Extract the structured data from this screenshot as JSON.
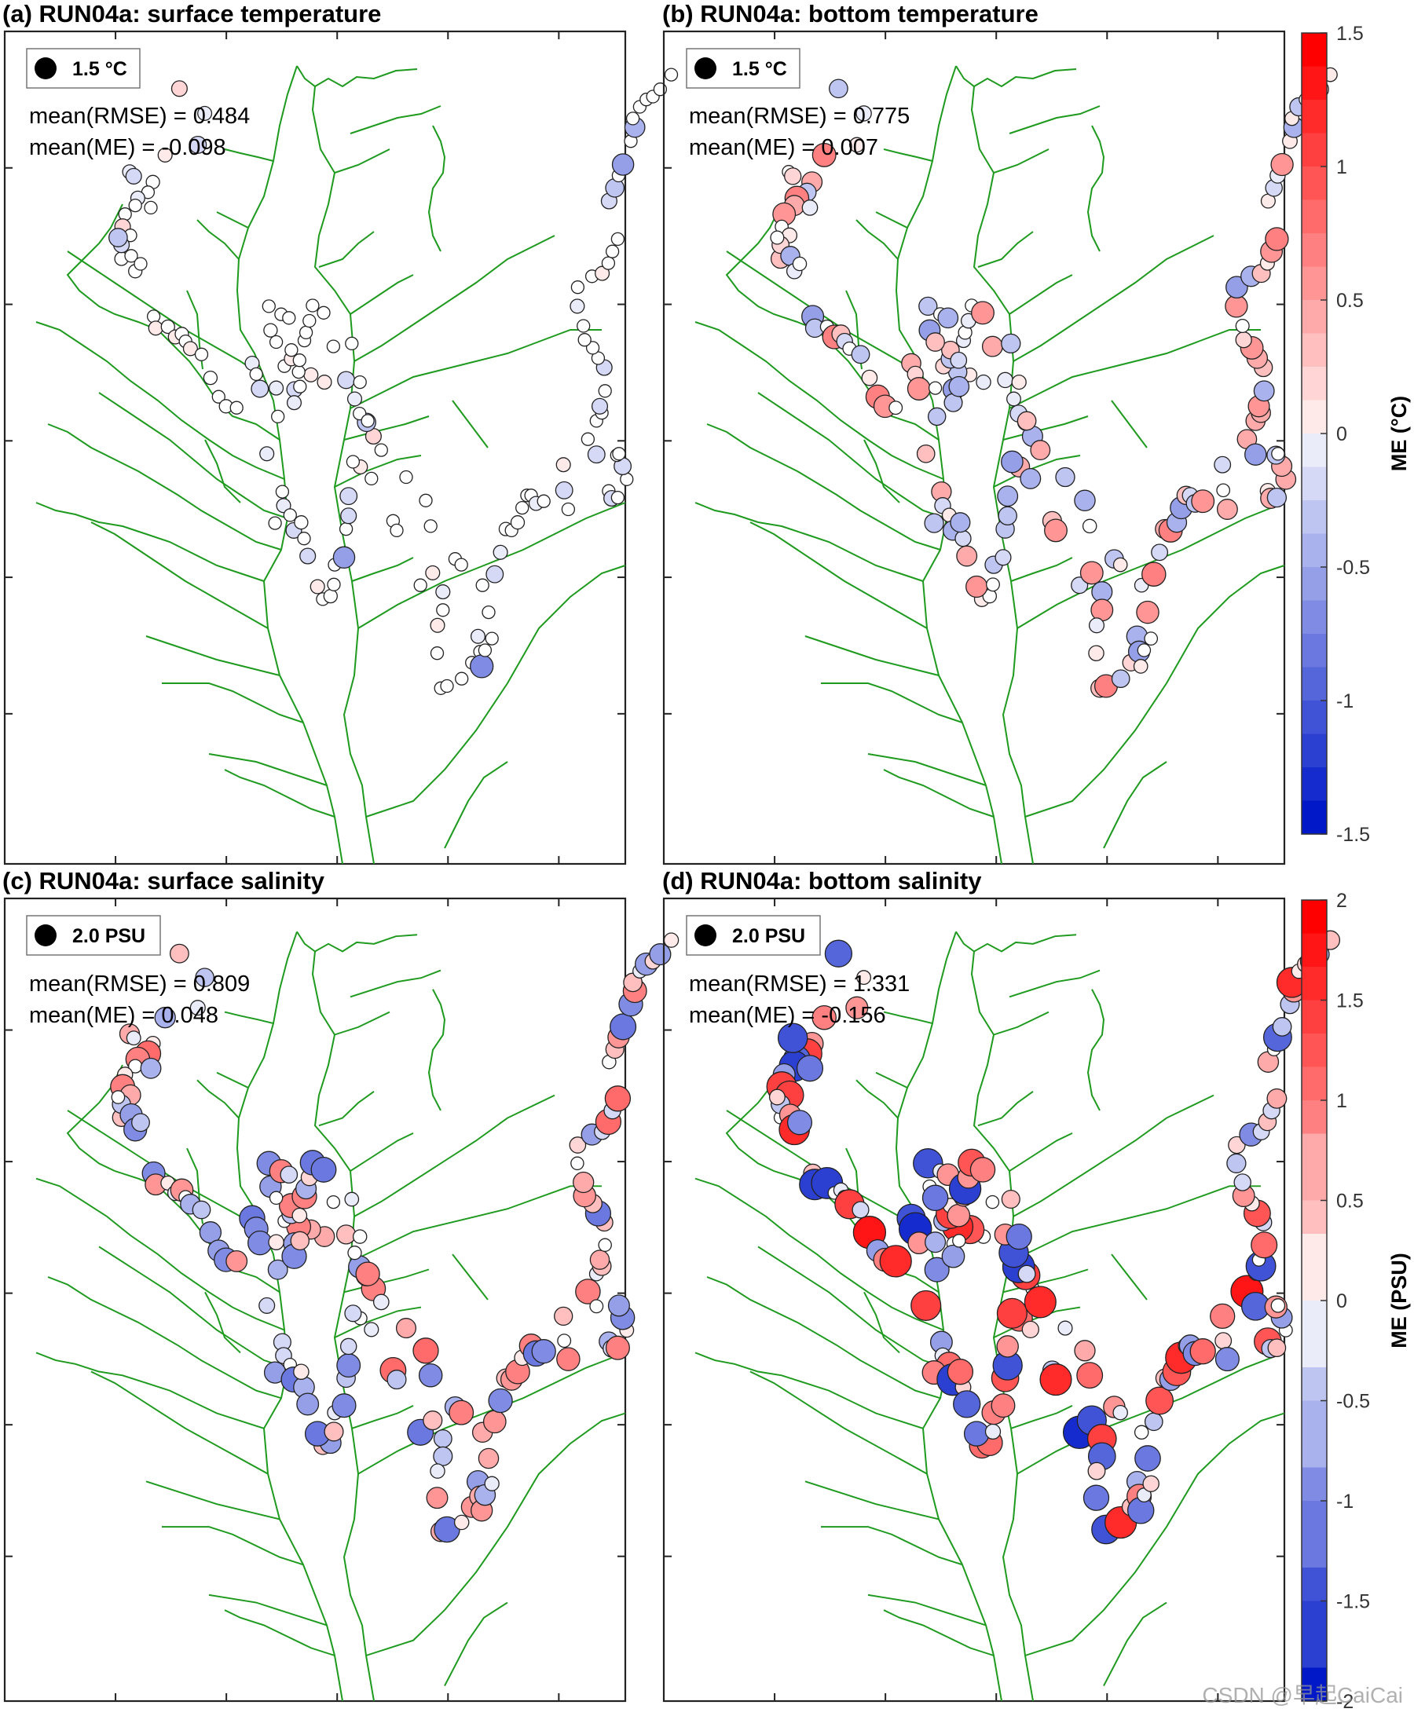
{
  "panels": [
    {
      "id": "a",
      "title": "(a) RUN04a: surface temperature",
      "legend_label": "1.5 °C",
      "rmse_text": "mean(RMSE) = 0.484",
      "me_text": "mean(ME) = -0.098",
      "stations": [
        [
          370,
          46,
          0.2
        ],
        [
          432,
          80,
          -0.1
        ],
        [
          415,
          123,
          -0.3
        ],
        [
          335,
          137,
          0.1
        ],
        [
          305,
          174,
          0.05
        ],
        [
          293,
          188,
          0
        ],
        [
          268,
          196,
          -0.1
        ],
        [
          262,
          206,
          0
        ],
        [
          248,
          160,
          -0.1
        ],
        [
          237,
          218,
          0
        ],
        [
          231,
          235,
          0.2
        ],
        [
          258,
          166,
          -0.2
        ],
        [
          300,
          209,
          0
        ],
        [
          228,
          279,
          -0.05
        ],
        [
          250,
          247,
          0
        ],
        [
          228,
          260,
          -0.2
        ],
        [
          220,
          250,
          -0.4
        ],
        [
          252,
          275,
          0
        ],
        [
          262,
          296,
          0.05
        ],
        [
          275,
          286,
          0
        ],
        [
          307,
          358,
          0
        ],
        [
          312,
          374,
          0.1
        ],
        [
          342,
          372,
          0.05
        ],
        [
          360,
          386,
          0.1
        ],
        [
          376,
          382,
          0.05
        ],
        [
          385,
          392,
          0
        ],
        [
          397,
          402,
          0.1
        ],
        [
          424,
          410,
          0
        ],
        [
          446,
          442,
          0.05
        ],
        [
          466,
          468,
          0
        ],
        [
          484,
          481,
          0.05
        ],
        [
          510,
          483,
          0
        ],
        [
          548,
          422,
          -0.1
        ],
        [
          558,
          437,
          0
        ],
        [
          567,
          457,
          -0.3
        ],
        [
          607,
          456,
          -0.1
        ],
        [
          611,
          495,
          0
        ],
        [
          584,
          546,
          -0.1
        ],
        [
          622,
          598,
          0
        ],
        [
          625,
          617,
          -0.1
        ],
        [
          641,
          630,
          0
        ],
        [
          604,
          641,
          0
        ],
        [
          650,
          651,
          -0.2
        ],
        [
          675,
          662,
          0
        ],
        [
          668,
          640,
          -0.05
        ],
        [
          684,
          686,
          -0.2
        ],
        [
          721,
          745,
          0
        ],
        [
          740,
          741,
          0.05
        ],
        [
          708,
          728,
          0.1
        ],
        [
          748,
          725,
          0
        ],
        [
          750,
          698,
          0
        ],
        [
          773,
          688,
          -0.6
        ],
        [
          778,
          649,
          0
        ],
        [
          784,
          631,
          -0.2
        ],
        [
          784,
          604,
          -0.3
        ],
        [
          813,
          564,
          0.1
        ],
        [
          795,
          557,
          0
        ],
        [
          840,
          580,
          0
        ],
        [
          845,
          522,
          0.2
        ],
        [
          828,
          503,
          -0.4
        ],
        [
          811,
          491,
          0
        ],
        [
          799,
          471,
          -0.1
        ],
        [
          778,
          445,
          -0.3
        ],
        [
          725,
          448,
          0.1
        ],
        [
          692,
          438,
          0.1
        ],
        [
          662,
          434,
          0
        ],
        [
          652,
          458,
          -0.2
        ],
        [
          651,
          476,
          -0.1
        ],
        [
          627,
          426,
          0
        ],
        [
          644,
          416,
          0.1
        ],
        [
          644,
          404,
          0
        ],
        [
          589,
          344,
          0
        ],
        [
          593,
          377,
          -0.05
        ],
        [
          607,
          393,
          0
        ],
        [
          619,
          355,
          0
        ],
        [
          638,
          360,
          0
        ],
        [
          664,
          418,
          0
        ],
        [
          665,
          454,
          0
        ],
        [
          676,
          391,
          0
        ],
        [
          680,
          380,
          0
        ],
        [
          688,
          364,
          0
        ],
        [
          696,
          343,
          0
        ],
        [
          723,
          353,
          0
        ],
        [
          747,
          399,
          0
        ],
        [
          792,
          395,
          0
        ],
        [
          812,
          448,
          0
        ],
        [
          831,
          501,
          0
        ],
        [
          864,
          541,
          0
        ],
        [
          893,
          638,
          0
        ],
        [
          902,
          651,
          0
        ],
        [
          925,
          578,
          0
        ],
        [
          973,
          610,
          0
        ],
        [
          985,
          645,
          0
        ],
        [
          960,
          726,
          0
        ],
        [
          990,
          709,
          0.1
        ],
        [
          1015,
          735,
          -0.1
        ],
        [
          1045,
          690,
          0
        ],
        [
          1060,
          698,
          0
        ],
        [
          1015,
          760,
          0
        ],
        [
          1002,
          781,
          0.1
        ],
        [
          1001,
          819,
          0
        ],
        [
          1010,
          867,
          0
        ],
        [
          1025,
          864,
          0
        ],
        [
          1061,
          854,
          0
        ],
        [
          1086,
          832,
          0
        ],
        [
          1101,
          796,
          -0.1
        ],
        [
          1106,
          817,
          0
        ],
        [
          1110,
          837,
          -0.7
        ],
        [
          1118,
          815,
          0
        ],
        [
          1135,
          799,
          0
        ],
        [
          1127,
          763,
          0
        ],
        [
          1112,
          726,
          0
        ],
        [
          1142,
          711,
          -0.3
        ],
        [
          1156,
          681,
          -0.1
        ],
        [
          1169,
          649,
          -0.05
        ],
        [
          1183,
          651,
          0
        ],
        [
          1198,
          640,
          -0.05
        ],
        [
          1209,
          620,
          0
        ],
        [
          1221,
          603,
          0
        ],
        [
          1231,
          603,
          0
        ],
        [
          1243,
          614,
          -0.1
        ],
        [
          1262,
          611,
          0
        ],
        [
          1310,
          561,
          0.1
        ],
        [
          1312,
          596,
          -0.3
        ],
        [
          1322,
          622,
          0
        ],
        [
          1370,
          526,
          0
        ],
        [
          1391,
          547,
          -0.3
        ],
        [
          1421,
          597,
          0
        ],
        [
          1428,
          607,
          -0.2
        ],
        [
          1443,
          606,
          0
        ],
        [
          1465,
          581,
          0
        ],
        [
          1455,
          563,
          -0.3
        ],
        [
          1441,
          548,
          0
        ],
        [
          1446,
          546,
          0
        ],
        [
          1391,
          501,
          0
        ],
        [
          1404,
          490,
          0
        ],
        [
          1399,
          481,
          -0.2
        ],
        [
          1412,
          460,
          0
        ],
        [
          1410,
          428,
          -0.2
        ],
        [
          1395,
          415,
          0
        ],
        [
          1382,
          401,
          0
        ],
        [
          1362,
          390,
          0
        ],
        [
          1359,
          371,
          0
        ],
        [
          1344,
          344,
          -0.1
        ],
        [
          1345,
          318,
          0
        ],
        [
          1380,
          303,
          0
        ],
        [
          1405,
          299,
          0.1
        ],
        [
          1420,
          285,
          0
        ],
        [
          1430,
          269,
          0
        ],
        [
          1443,
          252,
          0
        ],
        [
          1422,
          200,
          -0.2
        ],
        [
          1436,
          182,
          -0.4
        ],
        [
          1445,
          165,
          0
        ],
        [
          1456,
          150,
          -0.6
        ],
        [
          1475,
          118,
          0
        ],
        [
          1485,
          99,
          -0.5
        ],
        [
          1480,
          87,
          0
        ],
        [
          1497,
          71,
          0
        ],
        [
          1513,
          61,
          0
        ],
        [
          1529,
          57,
          0
        ],
        [
          1547,
          47,
          0
        ],
        [
          1574,
          27,
          0
        ]
      ]
    },
    {
      "id": "b",
      "title": "(b) RUN04a: bottom temperature",
      "legend_label": "1.5 °C",
      "rmse_text": "mean(RMSE) = 0.775",
      "me_text": "mean(ME) = 0.007",
      "stations": []
    },
    {
      "id": "c",
      "title": "(c) RUN04a: surface salinity",
      "legend_label": "2.0 PSU",
      "rmse_text": "mean(RMSE) = 0.809",
      "me_text": "mean(ME) = 0.048",
      "stations": []
    },
    {
      "id": "d",
      "title": "(d) RUN04a: bottom salinity",
      "legend_label": "2.0 PSU",
      "rmse_text": "mean(RMSE) = 1.331",
      "me_text": "mean(ME) = -0.156",
      "stations": []
    }
  ],
  "colorbars": [
    {
      "id": "temp",
      "label": "ME (°C)",
      "min": -1.5,
      "max": 1.5,
      "ticks": [
        {
          "v": 1.5,
          "t": "1.5"
        },
        {
          "v": 1,
          "t": "1"
        },
        {
          "v": 0.5,
          "t": "0.5"
        },
        {
          "v": 0,
          "t": "0"
        },
        {
          "v": -0.5,
          "t": "-0.5"
        },
        {
          "v": -1,
          "t": "-1"
        },
        {
          "v": -1.5,
          "t": "-1.5"
        }
      ]
    },
    {
      "id": "sal",
      "label": "ME (PSU)",
      "min": -2,
      "max": 2,
      "ticks": [
        {
          "v": 2,
          "t": "2"
        },
        {
          "v": 1.5,
          "t": "1.5"
        },
        {
          "v": 1,
          "t": "1"
        },
        {
          "v": 0.5,
          "t": "0.5"
        },
        {
          "v": 0,
          "t": "0"
        },
        {
          "v": -0.5,
          "t": "-0.5"
        },
        {
          "v": -1,
          "t": "-1"
        },
        {
          "v": -1.5,
          "t": "-1.5"
        },
        {
          "v": -2,
          "t": "-2"
        }
      ]
    }
  ],
  "colors": {
    "land_line": "#1e9a1e",
    "positive": "#ff0000",
    "negative": "#0018c8",
    "zero": "#ffffff"
  },
  "watermark": "CSDN @早起CaiCai"
}
